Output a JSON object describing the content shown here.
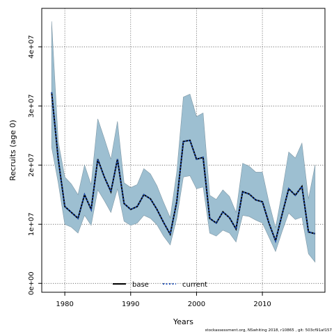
{
  "chart_data": {
    "type": "line",
    "xlabel": "Years",
    "ylabel": "Recruits (age 0)",
    "xlim": [
      1976.5,
      2019.5
    ],
    "ylim": [
      -1500000,
      46500000
    ],
    "x_ticks": [
      1980,
      1990,
      2000,
      2010
    ],
    "y_ticks": [
      0,
      10000000,
      20000000,
      30000000,
      40000000
    ],
    "y_tick_labels": [
      "0e+00",
      "1e+07",
      "2e+07",
      "3e+07",
      "4e+07"
    ],
    "grid": true,
    "legend_position": "bottom-center",
    "x": [
      1978,
      1979,
      1980,
      1981,
      1982,
      1983,
      1984,
      1985,
      1986,
      1987,
      1988,
      1989,
      1990,
      1991,
      1992,
      1993,
      1994,
      1995,
      1996,
      1997,
      1998,
      1999,
      2000,
      2001,
      2002,
      2003,
      2004,
      2005,
      2006,
      2007,
      2008,
      2009,
      2010,
      2011,
      2012,
      2013,
      2014,
      2015,
      2016,
      2017,
      2018
    ],
    "band": {
      "color": "#9dbfd1",
      "lower": [
        23000000,
        17000000,
        10000000,
        9500000,
        8500000,
        11500000,
        9800000,
        15800000,
        14000000,
        12000000,
        16000000,
        10500000,
        9800000,
        10200000,
        11500000,
        11000000,
        9900000,
        8000000,
        6500000,
        11000000,
        18000000,
        18200000,
        16000000,
        16300000,
        8500000,
        8000000,
        9000000,
        8500000,
        7000000,
        11500000,
        11300000,
        10700000,
        10200000,
        7800000,
        5400000,
        8800000,
        11900000,
        10800000,
        11200000,
        5000000,
        3600000
      ],
      "upper": [
        44300000,
        24000000,
        18000000,
        16800000,
        15000000,
        20000000,
        16700000,
        27800000,
        24500000,
        21000000,
        27400000,
        17000000,
        16200000,
        16700000,
        19400000,
        18500000,
        16500000,
        13700000,
        11100000,
        18800000,
        31500000,
        32000000,
        28200000,
        28800000,
        14900000,
        14200000,
        15800000,
        14700000,
        12000000,
        20300000,
        19800000,
        18800000,
        18800000,
        13700000,
        9400000,
        15500000,
        22200000,
        21200000,
        23700000,
        14300000,
        20000000
      ]
    },
    "series": [
      {
        "name": "base",
        "color": "#000000",
        "dash": "solid",
        "values": [
          32300000,
          21000000,
          13000000,
          12000000,
          11000000,
          15000000,
          12500000,
          21000000,
          18000000,
          15500000,
          21000000,
          13500000,
          12500000,
          13000000,
          15000000,
          14300000,
          12500000,
          10300000,
          8300000,
          13800000,
          24000000,
          24200000,
          21000000,
          21300000,
          11000000,
          10200000,
          12100000,
          11100000,
          9200000,
          15500000,
          15100000,
          14100000,
          13800000,
          10200000,
          7200000,
          11700000,
          16000000,
          14900000,
          16400000,
          8700000,
          8400000
        ]
      },
      {
        "name": "current",
        "color": "#1f4fb4",
        "dash": "dotted",
        "values": [
          32300000,
          21000000,
          13000000,
          12000000,
          11000000,
          15000000,
          12500000,
          21000000,
          18000000,
          15500000,
          21000000,
          13500000,
          12500000,
          13000000,
          15000000,
          14300000,
          12500000,
          10300000,
          8300000,
          13800000,
          24000000,
          24200000,
          21000000,
          21300000,
          11000000,
          10200000,
          12100000,
          11100000,
          9200000,
          15500000,
          15100000,
          14100000,
          13800000,
          10200000,
          7200000,
          11700000,
          16000000,
          14900000,
          16400000,
          8700000,
          8400000
        ]
      }
    ]
  },
  "footer": "stockassessment.org, NSwhiting 2018, r10865 , git: 503cf91af157"
}
